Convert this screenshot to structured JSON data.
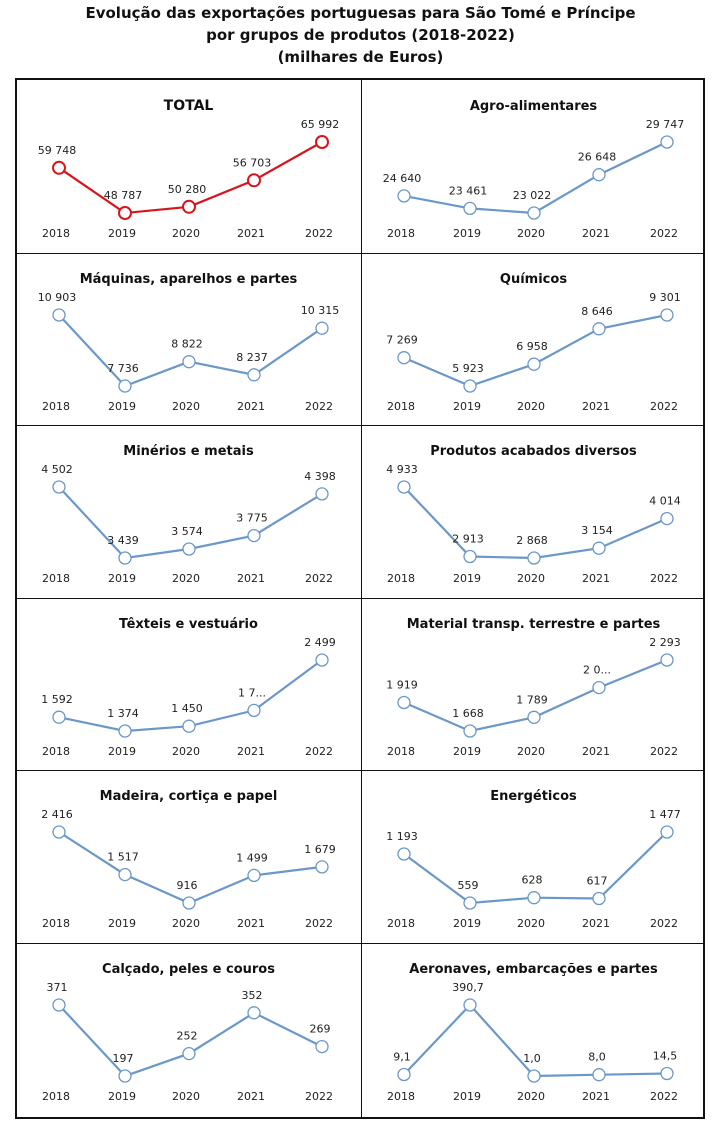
{
  "header": {
    "title_line1": "Evolução das exportações portuguesas para São Tomé e Príncipe",
    "title_line2": "por grupos de produtos (2018-2022)",
    "title_line3": "(milhares de Euros)"
  },
  "colors": {
    "total_series": "#d9141b",
    "group_series": "#6b98c8",
    "marker_fill": "#ffffff",
    "border": "#111111"
  },
  "chart_data": [
    {
      "type": "line",
      "title": "TOTAL",
      "categories": [
        "2018",
        "2019",
        "2020",
        "2021",
        "2022"
      ],
      "values": [
        59748,
        48787,
        50280,
        56703,
        65992
      ],
      "labels": [
        "59 748",
        "48 787",
        "50 280",
        "56 703",
        "65 992"
      ],
      "xlabel": "",
      "ylabel": "",
      "grid": false,
      "legend": "none",
      "highlight": true
    },
    {
      "type": "line",
      "title": "Agro-alimentares",
      "categories": [
        "2018",
        "2019",
        "2020",
        "2021",
        "2022"
      ],
      "values": [
        24640,
        23461,
        23022,
        26648,
        29747
      ],
      "labels": [
        "24 640",
        "23 461",
        "23 022",
        "26 648",
        "29 747"
      ],
      "xlabel": "",
      "ylabel": "",
      "grid": false,
      "legend": "none"
    },
    {
      "type": "line",
      "title": "Máquinas,  aparelhos e partes",
      "categories": [
        "2018",
        "2019",
        "2020",
        "2021",
        "2022"
      ],
      "values": [
        10903,
        7736,
        8822,
        8237,
        10315
      ],
      "labels": [
        "10 903",
        "7 736",
        "8 822",
        "8 237",
        "10 315"
      ],
      "xlabel": "",
      "ylabel": "",
      "grid": false,
      "legend": "none"
    },
    {
      "type": "line",
      "title": "Químicos",
      "categories": [
        "2018",
        "2019",
        "2020",
        "2021",
        "2022"
      ],
      "values": [
        7269,
        5923,
        6958,
        8646,
        9301
      ],
      "labels": [
        "7 269",
        "5 923",
        "6 958",
        "8 646",
        "9 301"
      ],
      "xlabel": "",
      "ylabel": "",
      "grid": false,
      "legend": "none"
    },
    {
      "type": "line",
      "title": "Minérios  e metais",
      "categories": [
        "2018",
        "2019",
        "2020",
        "2021",
        "2022"
      ],
      "values": [
        4502,
        3439,
        3574,
        3775,
        4398
      ],
      "labels": [
        "4 502",
        "3 439",
        "3 574",
        "3 775",
        "4 398"
      ],
      "xlabel": "",
      "ylabel": "",
      "grid": false,
      "legend": "none"
    },
    {
      "type": "line",
      "title": "Produtos  acabados diversos",
      "categories": [
        "2018",
        "2019",
        "2020",
        "2021",
        "2022"
      ],
      "values": [
        4933,
        2913,
        2868,
        3154,
        4014
      ],
      "labels": [
        "4 933",
        "2 913",
        "2 868",
        "3 154",
        "4 014"
      ],
      "xlabel": "",
      "ylabel": "",
      "grid": false,
      "legend": "none"
    },
    {
      "type": "line",
      "title": "Têxteis  e vestuário",
      "categories": [
        "2018",
        "2019",
        "2020",
        "2021",
        "2022"
      ],
      "values": [
        1592,
        1374,
        1450,
        1700,
        2499
      ],
      "labels": [
        "1 592",
        "1 374",
        "1 450",
        "1 7...",
        "2 499"
      ],
      "xlabel": "",
      "ylabel": "",
      "grid": false,
      "legend": "none"
    },
    {
      "type": "line",
      "title": "Material  transp. terrestre e partes",
      "categories": [
        "2018",
        "2019",
        "2020",
        "2021",
        "2022"
      ],
      "values": [
        1919,
        1668,
        1789,
        2050,
        2293
      ],
      "labels": [
        "1 919",
        "1 668",
        "1 789",
        "2 0...",
        "2 293"
      ],
      "xlabel": "",
      "ylabel": "",
      "grid": false,
      "legend": "none"
    },
    {
      "type": "line",
      "title": "Madeira, cortiça e papel",
      "categories": [
        "2018",
        "2019",
        "2020",
        "2021",
        "2022"
      ],
      "values": [
        2416,
        1517,
        916,
        1499,
        1679
      ],
      "labels": [
        "2 416",
        "1 517",
        "916",
        "1 499",
        "1 679"
      ],
      "xlabel": "",
      "ylabel": "",
      "grid": false,
      "legend": "none"
    },
    {
      "type": "line",
      "title": "Energéticos",
      "categories": [
        "2018",
        "2019",
        "2020",
        "2021",
        "2022"
      ],
      "values": [
        1193,
        559,
        628,
        617,
        1477
      ],
      "labels": [
        "1 193",
        "559",
        "628",
        "617",
        "1 477"
      ],
      "xlabel": "",
      "ylabel": "",
      "grid": false,
      "legend": "none"
    },
    {
      "type": "line",
      "title": "Calçado, peles e couros",
      "categories": [
        "2018",
        "2019",
        "2020",
        "2021",
        "2022"
      ],
      "values": [
        371,
        197,
        252,
        352,
        269
      ],
      "labels": [
        "371",
        "197",
        "252",
        "352",
        "269"
      ],
      "xlabel": "",
      "ylabel": "",
      "grid": false,
      "legend": "none"
    },
    {
      "type": "line",
      "title": "Aeronaves, embarcações e partes",
      "categories": [
        "2018",
        "2019",
        "2020",
        "2021",
        "2022"
      ],
      "values": [
        9.1,
        390.7,
        1.0,
        8.0,
        14.5
      ],
      "labels": [
        "9,1",
        "390,7",
        "1,0",
        "8,0",
        "14,5"
      ],
      "xlabel": "",
      "ylabel": "",
      "grid": false,
      "legend": "none"
    }
  ]
}
